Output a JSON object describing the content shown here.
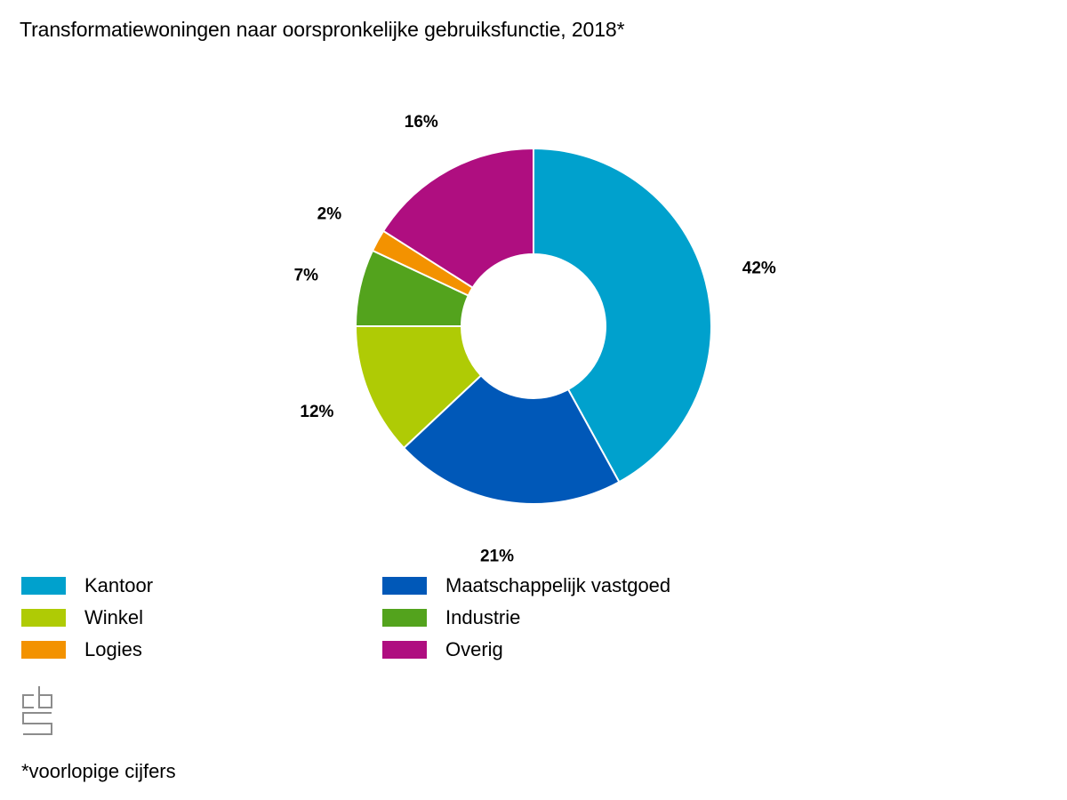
{
  "title": "Transformatiewoningen naar oorspronkelijke gebruiksfunctie, 2018*",
  "footnote": "*voorlopige cijfers",
  "logo": {
    "name": "cbs",
    "text": "cbs"
  },
  "chart_data": {
    "type": "pie",
    "title": "Transformatiewoningen naar oorspronkelijke gebruiksfunctie, 2018*",
    "donut": true,
    "start_angle": "12 o'clock",
    "direction": "clockwise",
    "categories": [
      "Kantoor",
      "Maatschappelijk vastgoed",
      "Winkel",
      "Industrie",
      "Logies",
      "Overig"
    ],
    "values": [
      42,
      21,
      12,
      7,
      2,
      16
    ],
    "value_labels": [
      "42%",
      "21%",
      "12%",
      "7%",
      "2%",
      "16%"
    ],
    "colors": [
      "#00a1cd",
      "#0058b8",
      "#afcb05",
      "#53a31d",
      "#f39200",
      "#af0e80"
    ],
    "unit": "%",
    "legend": "bottom"
  },
  "legend_items": [
    {
      "label": "Kantoor",
      "color": "#00a1cd"
    },
    {
      "label": "Maatschappelijk vastgoed",
      "color": "#0058b8"
    },
    {
      "label": "Winkel",
      "color": "#afcb05"
    },
    {
      "label": "Industrie",
      "color": "#53a31d"
    },
    {
      "label": "Logies",
      "color": "#f39200"
    },
    {
      "label": "Overig",
      "color": "#af0e80"
    }
  ]
}
